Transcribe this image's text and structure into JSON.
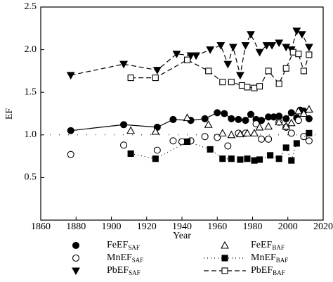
{
  "chart_data": {
    "type": "scatter",
    "x_label": "Year",
    "y_label": "EF",
    "xlim": [
      1860,
      2020
    ],
    "xticks": [
      1860,
      1880,
      1900,
      1920,
      1940,
      1960,
      1980,
      2000,
      2020
    ],
    "ylim": [
      0,
      2.5
    ],
    "yticks": [
      0.5,
      {
        "value": 1,
        "label": "1.0"
      },
      1.5,
      {
        "value": 2,
        "label": "2.0"
      },
      2.5
    ],
    "reference_line": 1,
    "series": [
      {
        "name": "FeEF",
        "name_sub": "SAF",
        "color": "#000000",
        "marker": "circle",
        "filled": true,
        "line_style": "solid",
        "x": [
          1877,
          1907,
          1926,
          1935,
          1945,
          1953,
          1960,
          1964,
          1968,
          1972,
          1976,
          1979,
          1982,
          1985,
          1989,
          1992,
          1995,
          1999,
          2002,
          2005,
          2007,
          2009,
          2012
        ],
        "values": [
          1.05,
          1.12,
          1.09,
          1.18,
          1.17,
          1.19,
          1.26,
          1.25,
          1.19,
          1.18,
          1.17,
          1.24,
          1.18,
          1.17,
          1.21,
          1.21,
          1.22,
          1.19,
          1.26,
          1.2,
          1.29,
          1.28,
          1.19
        ]
      },
      {
        "name": "MnEF",
        "name_sub": "SAF",
        "color": "#000000",
        "marker": "circle",
        "filled": false,
        "line_style": "none",
        "x": [
          1877,
          1907,
          1926,
          1935,
          1940,
          1945,
          1953,
          1960,
          1966,
          1972,
          1976,
          1982,
          1985,
          1989,
          1995,
          1999,
          2002,
          2006,
          2009,
          2012
        ],
        "values": [
          0.77,
          0.88,
          0.82,
          0.93,
          0.92,
          0.93,
          0.98,
          0.97,
          0.87,
          1.02,
          1.02,
          1.13,
          0.95,
          0.95,
          1.15,
          1.09,
          1.02,
          1.17,
          0.98,
          0.93
        ]
      },
      {
        "name": "PbEF",
        "name_sub": "SAF",
        "color": "#000000",
        "marker": "triangle-down",
        "filled": true,
        "line_style": "dashed",
        "x": [
          1877,
          1907,
          1926,
          1937,
          1945,
          1948,
          1956,
          1962,
          1966,
          1969,
          1973,
          1976,
          1979,
          1984,
          1988,
          1991,
          1995,
          1999,
          2002,
          2005,
          2008,
          2012
        ],
        "values": [
          1.7,
          1.83,
          1.76,
          1.95,
          1.93,
          1.93,
          2.0,
          2.05,
          1.83,
          2.03,
          1.7,
          2.05,
          2.18,
          1.97,
          2.05,
          2.05,
          2.08,
          2.03,
          2.0,
          2.22,
          2.18,
          2.03
        ]
      },
      {
        "name": "FeEF",
        "name_sub": "BAF",
        "color": "#000000",
        "marker": "triangle-up",
        "filled": false,
        "line_style": "none",
        "x": [
          1911,
          1925,
          1943,
          1955,
          1963,
          1968,
          1973,
          1977,
          1981,
          1984,
          1989,
          1995,
          1999,
          2002,
          2006,
          2009,
          2012
        ],
        "values": [
          1.05,
          1.04,
          1.2,
          1.12,
          1.02,
          1.0,
          1.01,
          1.02,
          1.02,
          1.09,
          1.1,
          1.15,
          1.1,
          1.14,
          1.28,
          1.25,
          1.3
        ]
      },
      {
        "name": "MnEF",
        "name_sub": "BAF",
        "color": "#000000",
        "marker": "square",
        "filled": true,
        "line_style": "dotted",
        "x": [
          1911,
          1925,
          1943,
          1956,
          1963,
          1968,
          1973,
          1977,
          1981,
          1984,
          1990,
          1995,
          1999,
          2002,
          2005,
          2012
        ],
        "values": [
          0.78,
          0.72,
          0.92,
          0.83,
          0.72,
          0.72,
          0.71,
          0.72,
          0.7,
          0.71,
          0.76,
          0.72,
          0.85,
          0.7,
          0.9,
          1.02
        ]
      },
      {
        "name": "PbEF",
        "name_sub": "BAF",
        "color": "#000000",
        "marker": "square",
        "filled": false,
        "line_style": "dashed",
        "x": [
          1911,
          1925,
          1943,
          1955,
          1963,
          1968,
          1974,
          1977,
          1981,
          1984,
          1989,
          1995,
          1999,
          2003,
          2006,
          2009,
          2012
        ],
        "values": [
          1.67,
          1.67,
          1.88,
          1.75,
          1.62,
          1.62,
          1.58,
          1.56,
          1.55,
          1.57,
          1.75,
          1.6,
          1.78,
          1.97,
          1.95,
          1.75,
          1.94
        ]
      }
    ]
  }
}
